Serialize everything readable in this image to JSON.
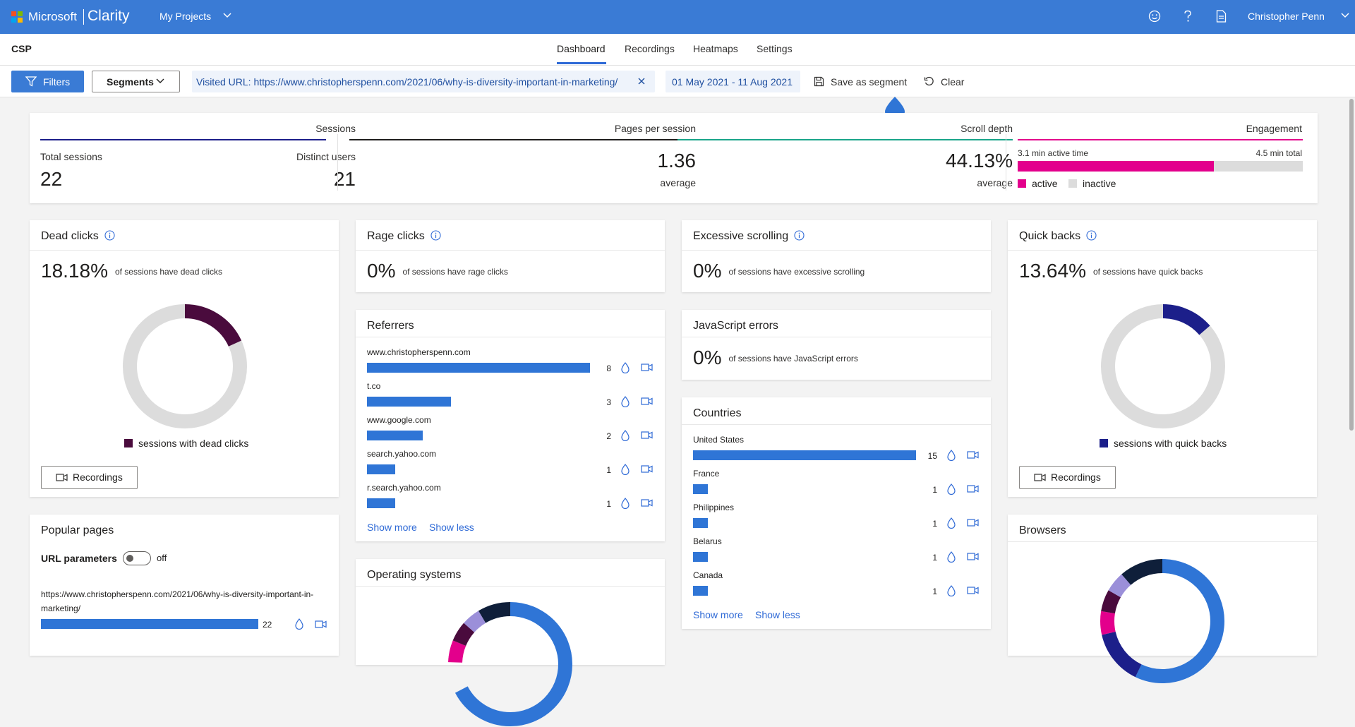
{
  "topbar": {
    "brand_microsoft": "Microsoft",
    "brand_product": "Clarity",
    "projects_label": "My Projects",
    "user_name": "Christopher Penn"
  },
  "nav": {
    "project": "CSP",
    "tabs": [
      {
        "label": "Dashboard",
        "active": true
      },
      {
        "label": "Recordings"
      },
      {
        "label": "Heatmaps"
      },
      {
        "label": "Settings"
      }
    ]
  },
  "filters": {
    "filters_label": "Filters",
    "segments_label": "Segments",
    "url_chip": "Visited URL: https://www.christopherspenn.com/2021/06/why-is-diversity-important-in-marketing/",
    "date_chip": "01 May 2021 - 11 Aug 2021",
    "save_label": "Save as segment",
    "clear_label": "Clear"
  },
  "summary": {
    "sessions": {
      "title": "Sessions",
      "total_label": "Total sessions",
      "total": "22",
      "distinct_label": "Distinct users",
      "distinct": "21"
    },
    "pages": {
      "title": "Pages per session",
      "value": "1.36",
      "sub": "average"
    },
    "scroll": {
      "title": "Scroll depth",
      "value": "44.13%",
      "sub": "average"
    },
    "engagement": {
      "title": "Engagement",
      "active_time": "3.1 min active time",
      "total_time": "4.5 min total",
      "active_fraction": 0.689,
      "legend_active": "active",
      "legend_inactive": "inactive"
    }
  },
  "dead_clicks": {
    "title": "Dead clicks",
    "value": "18.18%",
    "desc": "of sessions have dead clicks",
    "fraction": 0.1818,
    "legend": "sessions with dead clicks",
    "button": "Recordings"
  },
  "rage_clicks": {
    "title": "Rage clicks",
    "value": "0%",
    "desc": "of sessions have rage clicks"
  },
  "excessive_scrolling": {
    "title": "Excessive scrolling",
    "value": "0%",
    "desc": "of sessions have excessive scrolling"
  },
  "quick_backs": {
    "title": "Quick backs",
    "value": "13.64%",
    "desc": "of sessions have quick backs",
    "fraction": 0.1364,
    "legend": "sessions with quick backs",
    "button": "Recordings"
  },
  "js_errors": {
    "title": "JavaScript errors",
    "value": "0%",
    "desc": "of sessions have JavaScript errors"
  },
  "referrers": {
    "title": "Referrers",
    "items": [
      {
        "name": "www.christopherspenn.com",
        "count": 8
      },
      {
        "name": "t.co",
        "count": 3
      },
      {
        "name": "www.google.com",
        "count": 2
      },
      {
        "name": "search.yahoo.com",
        "count": 1
      },
      {
        "name": "r.search.yahoo.com",
        "count": 1
      }
    ],
    "show_more": "Show more",
    "show_less": "Show less"
  },
  "countries": {
    "title": "Countries",
    "items": [
      {
        "name": "United States",
        "count": 15
      },
      {
        "name": "France",
        "count": 1
      },
      {
        "name": "Philippines",
        "count": 1
      },
      {
        "name": "Belarus",
        "count": 1
      },
      {
        "name": "Canada",
        "count": 1
      }
    ],
    "show_more": "Show more",
    "show_less": "Show less"
  },
  "popular_pages": {
    "title": "Popular pages",
    "url_params_label": "URL parameters",
    "toggle_state": "off",
    "items": [
      {
        "name_line1": "https://www.christopherspenn.com/2021/06/why-is-diversity-important-in-",
        "name_line2": "marketing/",
        "count": 22
      }
    ]
  },
  "operating_systems": {
    "title": "Operating systems"
  },
  "browsers": {
    "title": "Browsers"
  },
  "colors": {
    "primary": "#3a7bd5",
    "bar": "#2f75d6",
    "dead_clicks": "#4a0b3d",
    "quick_backs": "#1c1f8a",
    "engagement": "#e3008c",
    "donut_track": "#dcdcdc",
    "sessions_line": "#1c1f8a",
    "pages_line": "#201f1e",
    "scroll_line": "#1aa58a"
  }
}
